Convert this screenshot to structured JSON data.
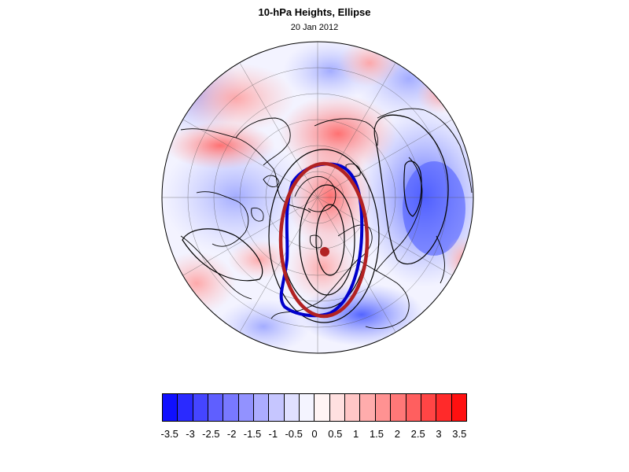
{
  "figure": {
    "title": "10-hPa Heights, Ellipse",
    "subtitle": "20 Jan 2012"
  },
  "colorbar": {
    "colors": [
      "#1010ff",
      "#2a2aff",
      "#4545ff",
      "#5f5fff",
      "#7878ff",
      "#9292ff",
      "#acacff",
      "#c6c6ff",
      "#e0e0ff",
      "#f4f4ff",
      "#fff4f4",
      "#ffe0e0",
      "#ffc6c6",
      "#ffacac",
      "#ff9292",
      "#ff7878",
      "#ff5f5f",
      "#ff4545",
      "#ff2a2a",
      "#ff1010"
    ],
    "labels": [
      "-3.5",
      "-3",
      "-2.5",
      "-2",
      "-1.5",
      "-1",
      "-0.5",
      "0",
      "0.5",
      "1",
      "1.5",
      "2",
      "2.5",
      "3",
      "3.5"
    ]
  },
  "map": {
    "projection": "north-polar-stereographic",
    "background_field": "standardized 10-hPa height anomaly",
    "overlays": [
      {
        "name": "fitted-ellipse",
        "color": "#b22222"
      },
      {
        "name": "vortex-edge-contour",
        "color": "#0000cc"
      },
      {
        "name": "vortex-centroid",
        "color": "#b22222"
      }
    ]
  }
}
